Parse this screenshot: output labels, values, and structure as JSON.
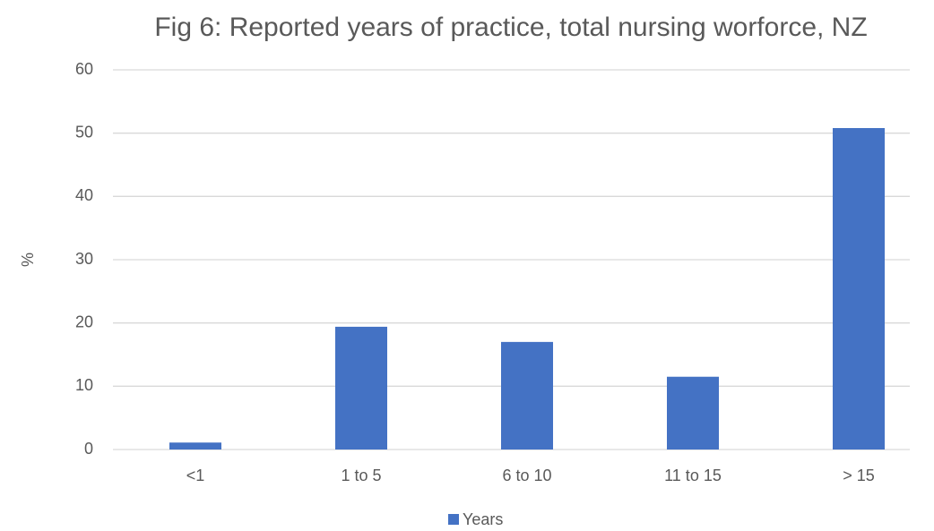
{
  "chart_data": {
    "type": "bar",
    "title": "Fig 6: Reported years of practice, total nursing worforce, NZ",
    "y_label": "%",
    "categories": [
      "<1",
      "1 to 5",
      "6 to 10",
      "11 to 15",
      "> 15"
    ],
    "series": [
      {
        "name": "Years",
        "color": "#4472c4",
        "values": [
          1.1,
          19.4,
          17.0,
          11.5,
          50.8
        ]
      }
    ],
    "ylim": [
      0,
      60
    ],
    "yticks": [
      0,
      10,
      20,
      30,
      40,
      50,
      60
    ],
    "grid": true,
    "legend": "bottom"
  }
}
